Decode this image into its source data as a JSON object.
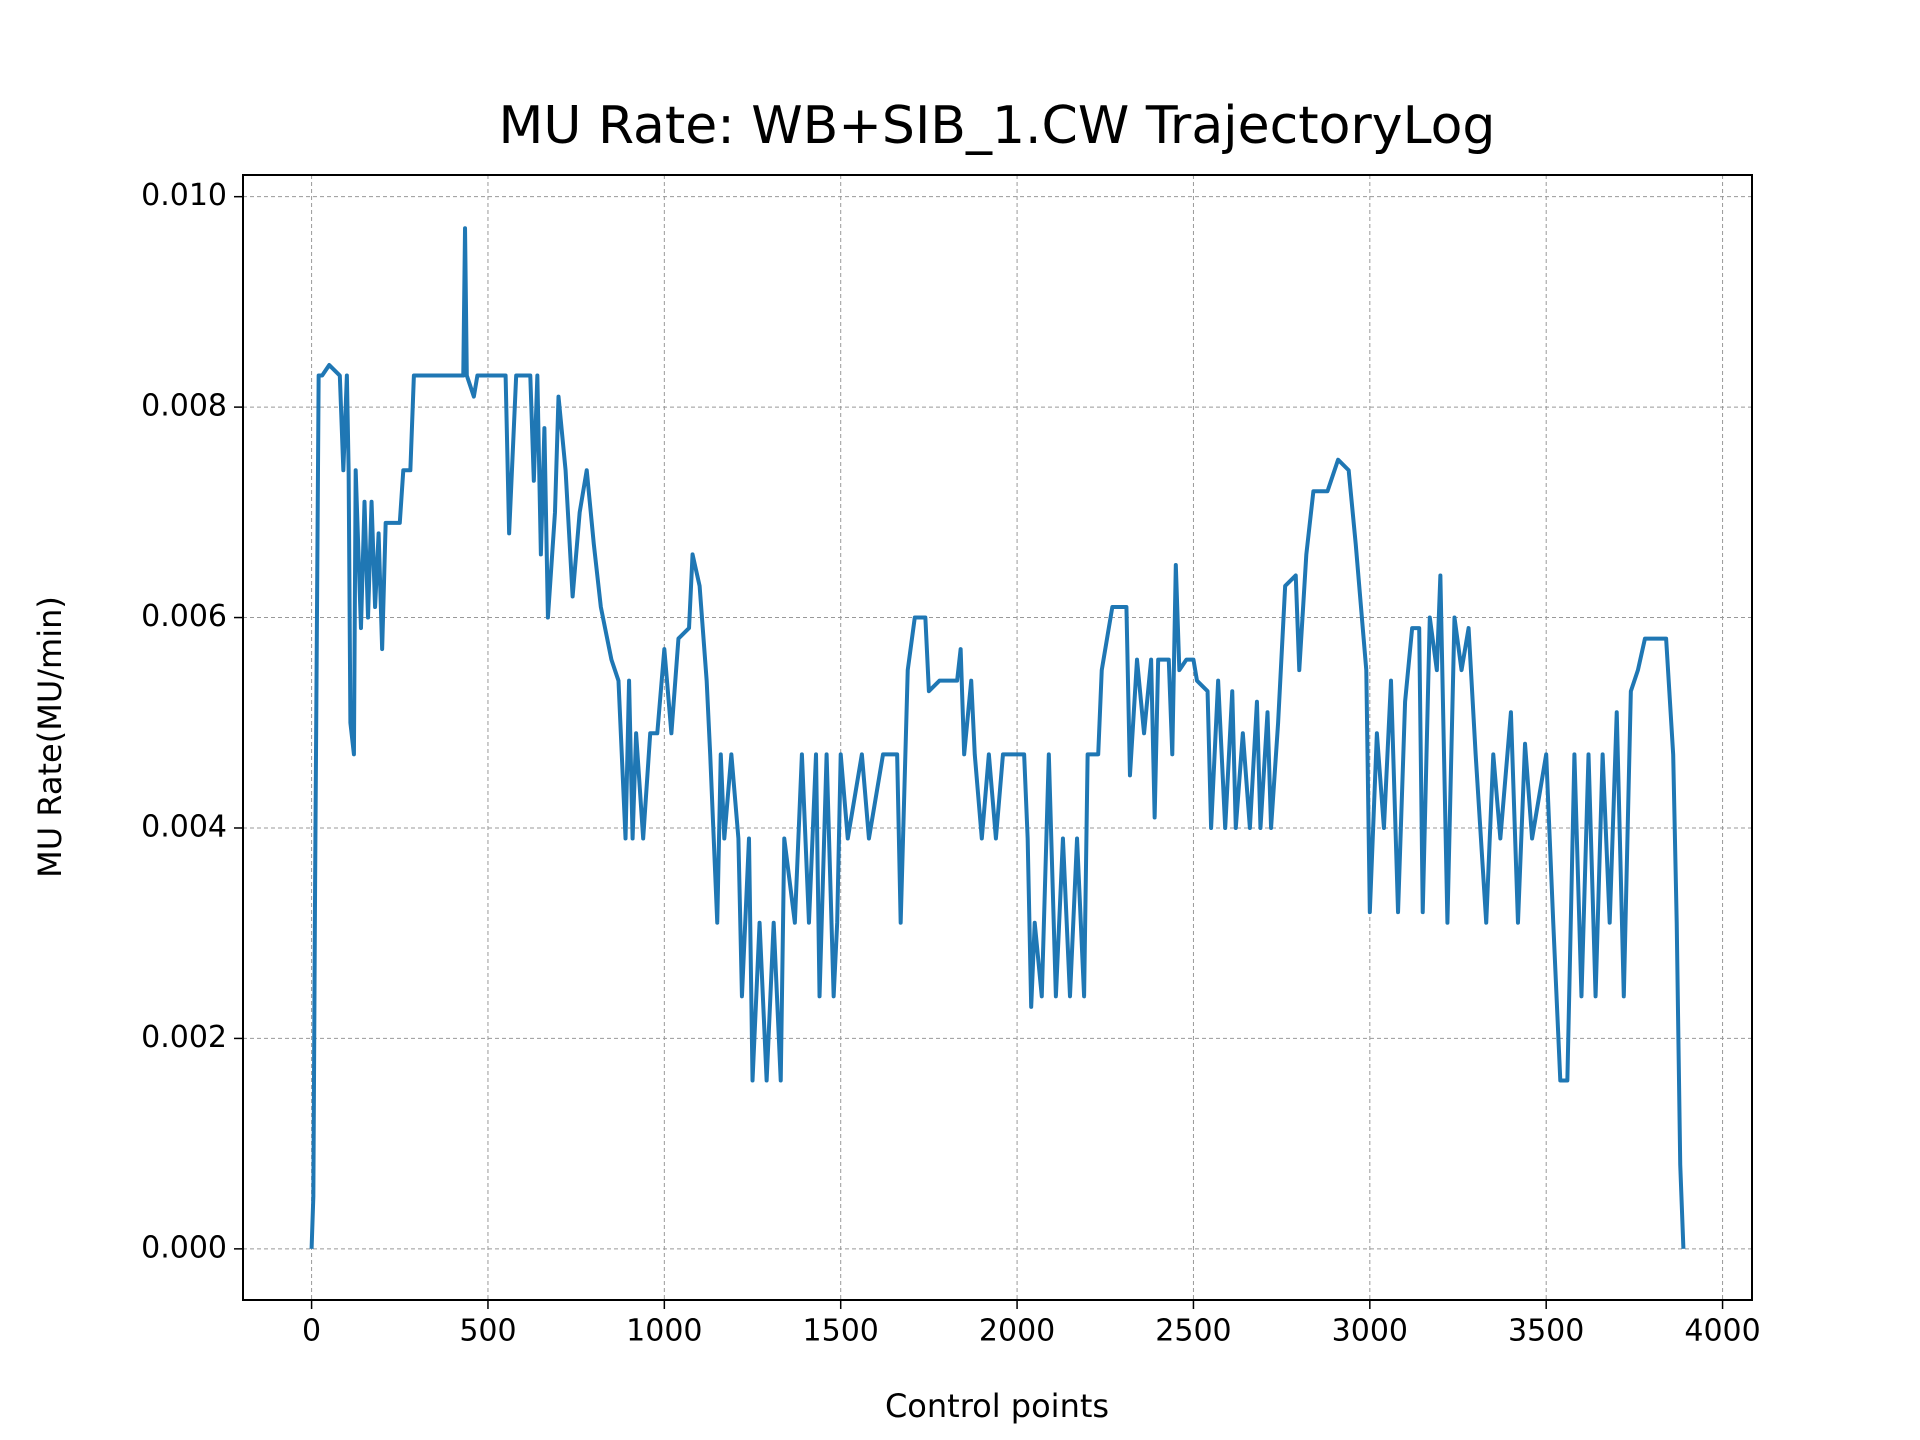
{
  "chart_data": {
    "type": "line",
    "title": "MU Rate: WB+SIB_1.CW TrajectoryLog",
    "xlabel": "Control points",
    "ylabel": "MU Rate(MU/min)",
    "grid": true,
    "xlim": [
      -194.45,
      4083.45
    ],
    "ylim": [
      -0.000486,
      0.010206
    ],
    "xticks": [
      0,
      500,
      1000,
      1500,
      2000,
      2500,
      3000,
      3500,
      4000
    ],
    "yticks": [
      {
        "value": 0,
        "label": "0.000"
      },
      0.002,
      0.004,
      0.006,
      0.008,
      {
        "value": 0.01,
        "label": "0.010"
      }
    ],
    "x": [
      0,
      5,
      10,
      20,
      30,
      50,
      80,
      90,
      100,
      105,
      110,
      120,
      125,
      140,
      150,
      160,
      170,
      180,
      190,
      200,
      210,
      250,
      260,
      280,
      290,
      430,
      435,
      440,
      460,
      470,
      550,
      560,
      580,
      620,
      630,
      640,
      650,
      660,
      670,
      690,
      700,
      720,
      740,
      760,
      780,
      800,
      820,
      850,
      870,
      890,
      900,
      910,
      920,
      940,
      960,
      980,
      1000,
      1020,
      1040,
      1070,
      1080,
      1100,
      1120,
      1130,
      1150,
      1160,
      1170,
      1190,
      1210,
      1220,
      1240,
      1250,
      1270,
      1290,
      1310,
      1330,
      1340,
      1370,
      1390,
      1410,
      1430,
      1440,
      1460,
      1480,
      1490,
      1500,
      1520,
      1560,
      1580,
      1620,
      1660,
      1670,
      1690,
      1710,
      1740,
      1750,
      1780,
      1830,
      1840,
      1850,
      1870,
      1880,
      1900,
      1920,
      1940,
      1960,
      2020,
      2030,
      2040,
      2050,
      2070,
      2090,
      2110,
      2130,
      2150,
      2170,
      2190,
      2200,
      2230,
      2240,
      2270,
      2310,
      2320,
      2340,
      2360,
      2380,
      2390,
      2400,
      2430,
      2440,
      2450,
      2460,
      2480,
      2500,
      2510,
      2540,
      2550,
      2570,
      2590,
      2610,
      2620,
      2640,
      2660,
      2680,
      2690,
      2710,
      2720,
      2740,
      2760,
      2790,
      2800,
      2820,
      2840,
      2880,
      2910,
      2940,
      2960,
      2990,
      3000,
      3020,
      3040,
      3060,
      3080,
      3100,
      3120,
      3140,
      3150,
      3170,
      3190,
      3200,
      3220,
      3240,
      3260,
      3280,
      3300,
      3330,
      3350,
      3370,
      3400,
      3420,
      3440,
      3460,
      3500,
      3520,
      3540,
      3560,
      3580,
      3600,
      3620,
      3640,
      3660,
      3680,
      3700,
      3720,
      3740,
      3760,
      3780,
      3800,
      3840,
      3860,
      3870,
      3880,
      3889
    ],
    "series": [
      {
        "color": "#1f77b4",
        "values": [
          0,
          0.0005,
          0.0035,
          0.0083,
          0.0083,
          0.0084,
          0.0083,
          0.0074,
          0.0083,
          0.0074,
          0.005,
          0.0047,
          0.0074,
          0.0059,
          0.0071,
          0.006,
          0.0071,
          0.0061,
          0.0068,
          0.0057,
          0.0069,
          0.0069,
          0.0074,
          0.0074,
          0.0083,
          0.0083,
          0.0097,
          0.0083,
          0.0081,
          0.0083,
          0.0083,
          0.0068,
          0.0083,
          0.0083,
          0.0073,
          0.0083,
          0.0066,
          0.0078,
          0.006,
          0.007,
          0.0081,
          0.0074,
          0.0062,
          0.007,
          0.0074,
          0.0067,
          0.0061,
          0.0056,
          0.0054,
          0.0039,
          0.0054,
          0.0039,
          0.0049,
          0.0039,
          0.0049,
          0.0049,
          0.0057,
          0.0049,
          0.0058,
          0.0059,
          0.0066,
          0.0063,
          0.0054,
          0.0047,
          0.0031,
          0.0047,
          0.0039,
          0.0047,
          0.0039,
          0.0024,
          0.0039,
          0.0016,
          0.0031,
          0.0016,
          0.0031,
          0.0016,
          0.0039,
          0.0031,
          0.0047,
          0.0031,
          0.0047,
          0.0024,
          0.0047,
          0.0024,
          0.0031,
          0.0047,
          0.0039,
          0.0047,
          0.0039,
          0.0047,
          0.0047,
          0.0031,
          0.0055,
          0.006,
          0.006,
          0.0053,
          0.0054,
          0.0054,
          0.0057,
          0.0047,
          0.0054,
          0.0047,
          0.0039,
          0.0047,
          0.0039,
          0.0047,
          0.0047,
          0.0039,
          0.0023,
          0.0031,
          0.0024,
          0.0047,
          0.0024,
          0.0039,
          0.0024,
          0.0039,
          0.0024,
          0.0047,
          0.0047,
          0.0055,
          0.0061,
          0.0061,
          0.0045,
          0.0056,
          0.0049,
          0.0056,
          0.0041,
          0.0056,
          0.0056,
          0.0047,
          0.0065,
          0.0055,
          0.0056,
          0.0056,
          0.0054,
          0.0053,
          0.004,
          0.0054,
          0.004,
          0.0053,
          0.004,
          0.0049,
          0.004,
          0.0052,
          0.004,
          0.0051,
          0.004,
          0.005,
          0.0063,
          0.0064,
          0.0055,
          0.0066,
          0.0072,
          0.0072,
          0.0075,
          0.0074,
          0.0067,
          0.0055,
          0.0032,
          0.0049,
          0.004,
          0.0054,
          0.0032,
          0.0052,
          0.0059,
          0.0059,
          0.0032,
          0.006,
          0.0055,
          0.0064,
          0.0031,
          0.006,
          0.0055,
          0.0059,
          0.0047,
          0.0031,
          0.0047,
          0.0039,
          0.0051,
          0.0031,
          0.0048,
          0.0039,
          0.0047,
          0.0031,
          0.0016,
          0.0016,
          0.0047,
          0.0024,
          0.0047,
          0.0024,
          0.0047,
          0.0031,
          0.0051,
          0.0024,
          0.0053,
          0.0055,
          0.0058,
          0.0058,
          0.0058,
          0.0047,
          0.0031,
          0.0008,
          0
        ]
      }
    ]
  }
}
